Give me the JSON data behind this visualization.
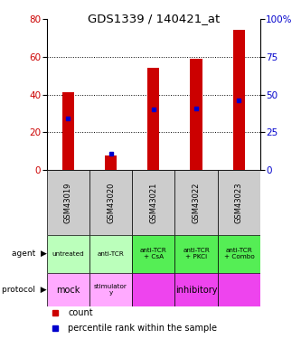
{
  "title": "GDS1339 / 140421_at",
  "samples": [
    "GSM43019",
    "GSM43020",
    "GSM43021",
    "GSM43022",
    "GSM43023"
  ],
  "counts": [
    41,
    8,
    54,
    59,
    74
  ],
  "percentile_ranks": [
    34,
    11,
    40,
    41,
    46
  ],
  "ylim_left": [
    0,
    80
  ],
  "ylim_right": [
    0,
    100
  ],
  "yticks_left": [
    0,
    20,
    40,
    60,
    80
  ],
  "yticks_right": [
    0,
    25,
    50,
    75,
    100
  ],
  "bar_color": "#cc0000",
  "dot_color": "#0000cc",
  "samples_bg": "#cccccc",
  "agent_colors": [
    "#bbffbb",
    "#bbffbb",
    "#55ee55",
    "#55ee55",
    "#55ee55"
  ],
  "agent_labels": [
    "untreated",
    "anti-TCR",
    "anti-TCR\n+ CsA",
    "anti-TCR\n+ PKCi",
    "anti-TCR\n+ Combo"
  ],
  "protocol_colors": [
    "#ffaaff",
    "#ffaaff",
    "#ee44ee",
    "#ee44ee",
    "#ee44ee"
  ],
  "legend_count_color": "#cc0000",
  "legend_pct_color": "#0000cc"
}
